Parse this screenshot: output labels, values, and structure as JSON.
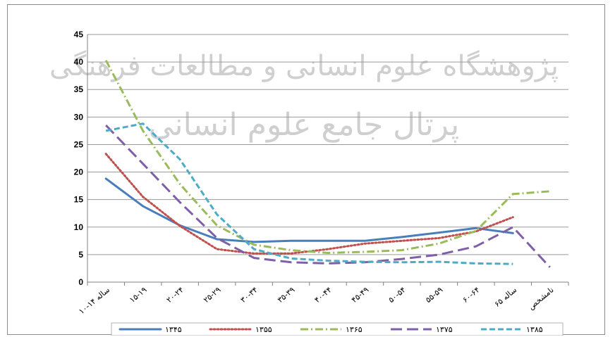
{
  "chart_data": {
    "type": "line",
    "title": "",
    "xlabel": "",
    "ylabel": "",
    "ylim": [
      0,
      45
    ],
    "yticks": [
      0,
      5,
      10,
      15,
      20,
      25,
      30,
      35,
      40,
      45
    ],
    "grid": true,
    "legend_position": "bottom",
    "categories": [
      "۱۰-۱۴ ساله",
      "۱۵-۱۹",
      "۲۰-۲۴",
      "۲۵-۲۹",
      "۳۰-۳۴",
      "۳۵-۳۹",
      "۴۰-۴۴",
      "۴۵-۴۹",
      "۵۰-۵۴",
      "۵۵-۵۹",
      "۶۰-۶۴",
      "۶۵ ساله",
      "نامشخص"
    ],
    "series": [
      {
        "name": "۱۳۴۵",
        "color": "#4a7ebb",
        "dash": "solid",
        "values": [
          18.8,
          13.8,
          10.3,
          7.8,
          7.3,
          7.5,
          7.5,
          7.5,
          8.2,
          9.0,
          9.8,
          8.9,
          null
        ]
      },
      {
        "name": "۱۳۵۵",
        "color": "#c0504d",
        "dash": "dot",
        "values": [
          23.3,
          15.5,
          10.2,
          6.0,
          5.2,
          5.2,
          6.0,
          7.0,
          7.5,
          8.0,
          9.2,
          11.8,
          null
        ]
      },
      {
        "name": "۱۳۶۵",
        "color": "#9bbb59",
        "dash": "dashdot",
        "values": [
          40.3,
          27.5,
          17.8,
          10.3,
          6.8,
          5.8,
          5.3,
          5.5,
          5.8,
          7.0,
          9.3,
          16.0,
          16.5
        ]
      },
      {
        "name": "۱۳۷۵",
        "color": "#7f5fa8",
        "dash": "longdash",
        "values": [
          28.5,
          21.5,
          14.5,
          8.0,
          4.4,
          3.6,
          3.4,
          3.6,
          4.2,
          5.0,
          6.5,
          10.0,
          2.7
        ]
      },
      {
        "name": "۱۳۸۵",
        "color": "#4bacc6",
        "dash": "dash",
        "values": [
          27.5,
          28.8,
          22.3,
          12.3,
          6.0,
          4.3,
          3.9,
          3.7,
          3.6,
          3.7,
          3.4,
          3.3,
          null
        ]
      }
    ]
  },
  "watermark": {
    "line1": "پژوهشگاه علوم انسانی و مطالعات فرهنگی",
    "line2": "پرتال جامع علوم انسانی"
  }
}
